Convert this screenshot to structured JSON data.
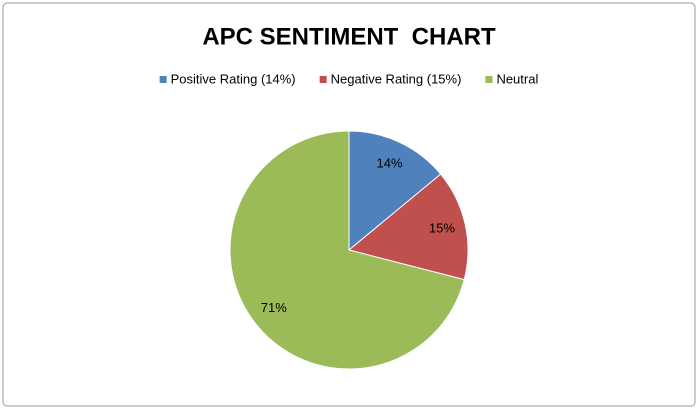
{
  "chart_data": {
    "type": "pie",
    "title": "APC SENTIMENT  CHART",
    "categories": [
      "Positive Rating (14%)",
      "Negative Rating (15%)",
      "Neutral"
    ],
    "values": [
      14,
      15,
      71
    ],
    "value_labels": [
      "14%",
      "15%",
      "71%"
    ],
    "colors": [
      "#4f81bd",
      "#c0504d",
      "#9bbb59"
    ],
    "legend": "top"
  }
}
